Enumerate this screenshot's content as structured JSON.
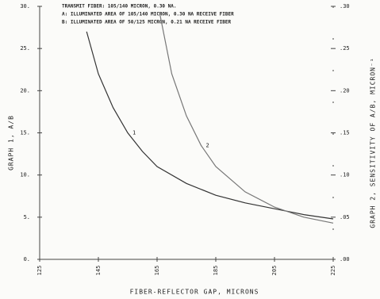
{
  "chart_data": {
    "type": "line",
    "annotations": [
      "TRANSMIT FIBER: 105/140 MICRON, 0.30 NA.",
      "A: ILLUMINATED AREA OF 105/140 MICRON, 0.30 NA RECEIVE FIBER",
      "B: ILLUMINATED AREA OF 50/125 MICRON, 0.21 NA RECEIVE FIBER"
    ],
    "xlabel": "FIBER-REFLECTOR GAP, MICRONS",
    "ylabel": "GRAPH 1, A/B",
    "y2label": "GRAPH 2, SENSITIVITY OF A/B, MICRON⁻¹",
    "xlim": [
      125,
      225
    ],
    "xticks": [
      125,
      145,
      165,
      185,
      205,
      225
    ],
    "ylim": [
      0,
      30
    ],
    "yticks": [
      {
        "value": 0,
        "label": "0."
      },
      {
        "value": 5,
        "label": "5."
      },
      {
        "value": 10,
        "label": "10."
      },
      {
        "value": 15,
        "label": "15."
      },
      {
        "value": 20,
        "label": "20."
      },
      {
        "value": 25,
        "label": "25."
      },
      {
        "value": 30,
        "label": "30."
      }
    ],
    "y2lim": [
      0,
      0.3
    ],
    "y2ticks": [
      {
        "value": 0,
        "label": ".00"
      },
      {
        "value": 0.05,
        "label": ".05"
      },
      {
        "value": 0.1,
        "label": ".10"
      },
      {
        "value": 0.15,
        "label": ".15"
      },
      {
        "value": 0.2,
        "label": ".20"
      },
      {
        "value": 0.25,
        "label": ".25"
      },
      {
        "value": 0.3,
        "label": ".30"
      }
    ],
    "series": [
      {
        "name": "1",
        "color": "#333333",
        "x": [
          141,
          145,
          150,
          155,
          160,
          165,
          175,
          185,
          195,
          205,
          215,
          225
        ],
        "values": [
          27,
          22,
          18,
          15,
          12.8,
          11,
          9,
          7.6,
          6.7,
          6,
          5.3,
          4.8
        ]
      },
      {
        "name": "2",
        "color": "#777777",
        "axis": "y2",
        "x": [
          166,
          170,
          175,
          180,
          185,
          195,
          205,
          215,
          225
        ],
        "values": [
          0.29,
          0.22,
          0.17,
          0.135,
          0.11,
          0.08,
          0.062,
          0.05,
          0.043
        ]
      }
    ]
  }
}
